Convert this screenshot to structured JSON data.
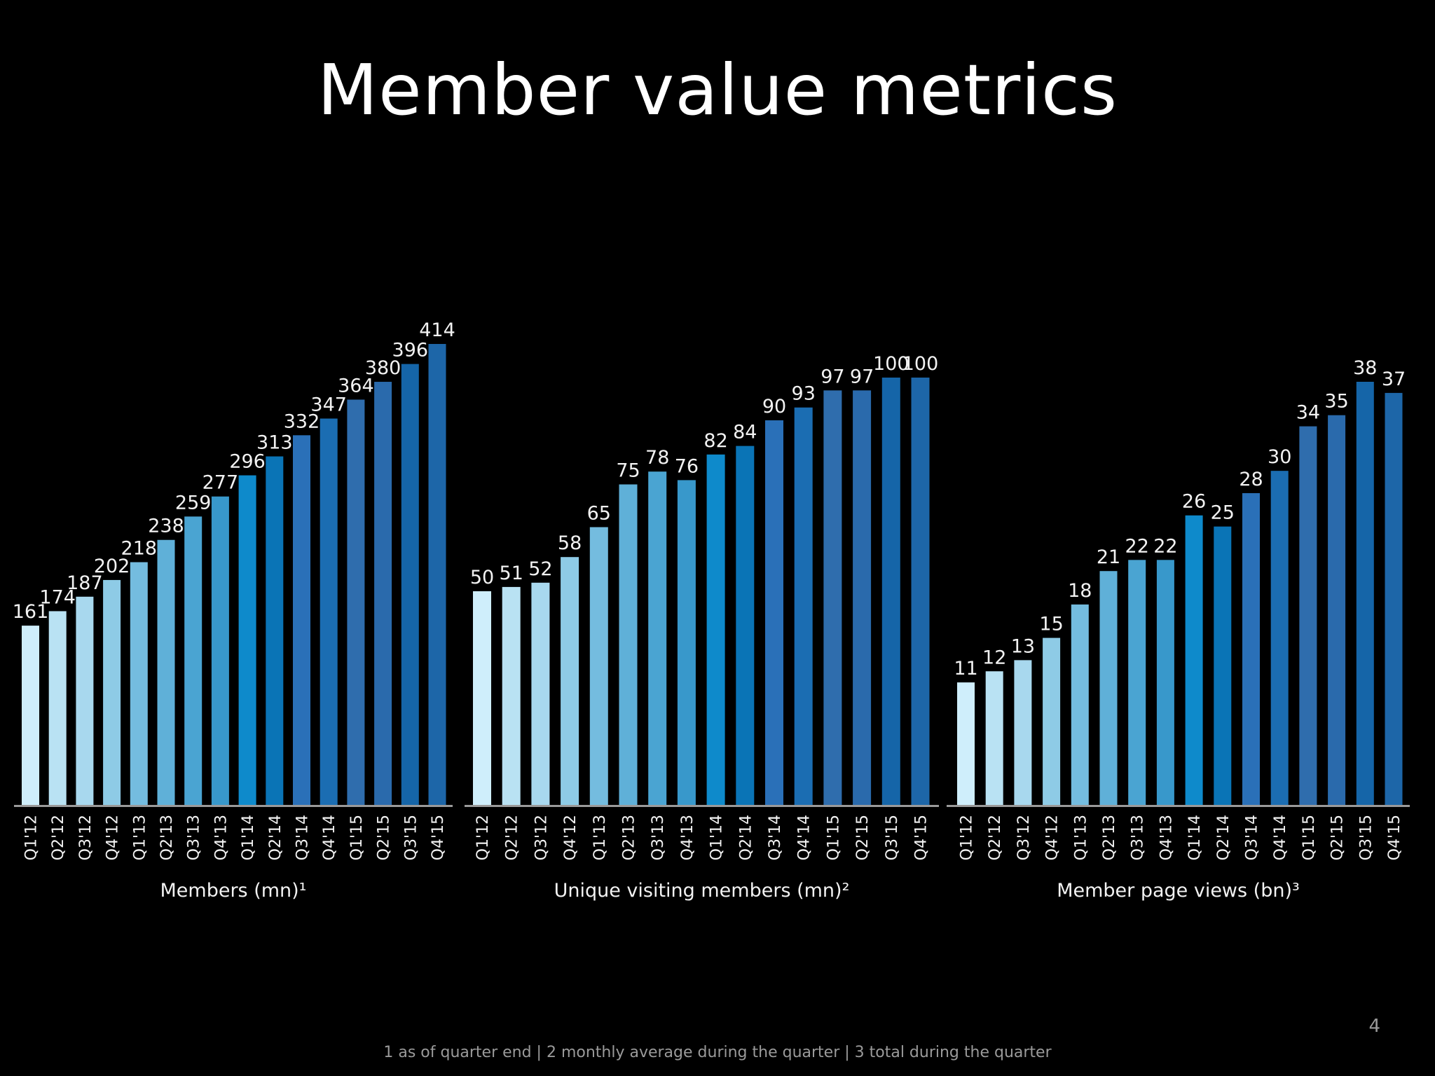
{
  "slide": {
    "title": "Member value metrics",
    "footnote": "1 as of quarter end | 2 monthly average during the quarter | 3 total during the quarter",
    "page_number": "4"
  },
  "chart_data": [
    {
      "type": "bar",
      "xlabel": "Members (mn)¹",
      "categories": [
        "Q1'12",
        "Q2'12",
        "Q3'12",
        "Q4'12",
        "Q1'13",
        "Q2'13",
        "Q3'13",
        "Q4'13",
        "Q1'14",
        "Q2'14",
        "Q3'14",
        "Q4'14",
        "Q1'15",
        "Q2'15",
        "Q3'15",
        "Q4'15"
      ],
      "values": [
        161,
        174,
        187,
        202,
        218,
        238,
        259,
        277,
        296,
        313,
        332,
        347,
        364,
        380,
        396,
        414
      ],
      "ylim": [
        0,
        414
      ],
      "grid": false,
      "legend": "none"
    },
    {
      "type": "bar",
      "xlabel": "Unique visiting members (mn)²",
      "categories": [
        "Q1'12",
        "Q2'12",
        "Q3'12",
        "Q4'12",
        "Q1'13",
        "Q2'13",
        "Q3'13",
        "Q4'13",
        "Q1'14",
        "Q2'14",
        "Q3'14",
        "Q4'14",
        "Q1'15",
        "Q2'15",
        "Q3'15",
        "Q4'15"
      ],
      "values": [
        50,
        51,
        52,
        58,
        65,
        75,
        78,
        76,
        82,
        84,
        90,
        93,
        97,
        97,
        100,
        100
      ],
      "ylim": [
        0,
        100
      ],
      "grid": false,
      "legend": "none"
    },
    {
      "type": "bar",
      "xlabel": "Member page views (bn)³",
      "categories": [
        "Q1'12",
        "Q2'12",
        "Q3'12",
        "Q4'12",
        "Q1'13",
        "Q2'13",
        "Q3'13",
        "Q4'13",
        "Q1'14",
        "Q2'14",
        "Q3'14",
        "Q4'14",
        "Q1'15",
        "Q2'15",
        "Q3'15",
        "Q4'15"
      ],
      "values": [
        11,
        12,
        13,
        15,
        18,
        21,
        22,
        22,
        26,
        25,
        28,
        30,
        34,
        35,
        38,
        37
      ],
      "ylim": [
        0,
        38
      ],
      "grid": false,
      "legend": "none"
    }
  ],
  "colors": {
    "background": "#000000",
    "axis": "#9a9a9a",
    "bars": [
      "#cfeefb",
      "#b9e2f3",
      "#a8d8ee",
      "#8ecbe6",
      "#74bcdf",
      "#5fb0d8",
      "#4aa4d2",
      "#3898cb",
      "#0e8acb",
      "#0a74b6",
      "#2a70b8",
      "#1b6db2",
      "#2f6dad",
      "#2a6aac",
      "#1565a8",
      "#1d66a8"
    ]
  }
}
